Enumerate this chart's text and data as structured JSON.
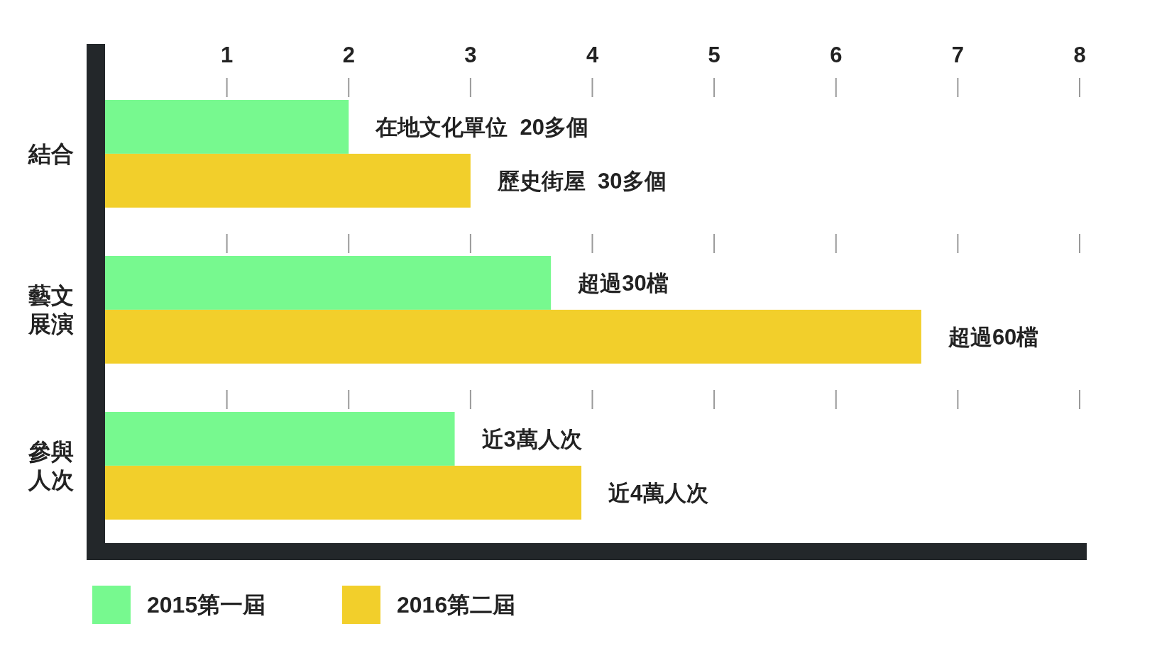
{
  "chart_data": {
    "type": "bar",
    "orientation": "horizontal",
    "categories": [
      "結合",
      "藝文展演",
      "參與人次"
    ],
    "xlim": [
      0,
      8
    ],
    "xticks": [
      1,
      2,
      3,
      4,
      5,
      6,
      7,
      8
    ],
    "legend": "bottom left",
    "series": [
      {
        "name": "2015第一屆",
        "color": "#77f98f",
        "values": [
          2.0,
          3.66,
          2.87
        ],
        "value_labels": [
          "在地文化單位  20多個",
          "超過30檔",
          "近3萬人次"
        ]
      },
      {
        "name": "2016第二屆",
        "color": "#f2cf2b",
        "values": [
          3.0,
          6.7,
          3.91
        ],
        "value_labels": [
          "歷史街屋  30多個",
          "超過60檔",
          "近4萬人次"
        ]
      }
    ]
  }
}
